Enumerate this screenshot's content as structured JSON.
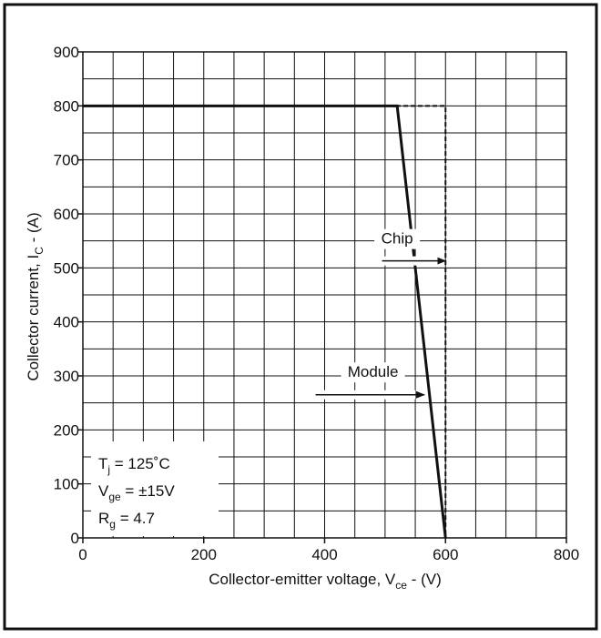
{
  "chart_data": {
    "type": "line",
    "xlabel_main": "Collector-emitter voltage, V",
    "xlabel_sub": "ce",
    "xlabel_suffix": " - (V)",
    "ylabel_main": "Collector current, I",
    "ylabel_sub": "C",
    "ylabel_suffix": " - (A)",
    "xlim": [
      0,
      800
    ],
    "ylim": [
      0,
      900
    ],
    "x_ticks": [
      0,
      200,
      400,
      600,
      800
    ],
    "y_ticks": [
      0,
      100,
      200,
      300,
      400,
      500,
      600,
      700,
      800,
      900
    ],
    "x_grid_step": 50,
    "y_grid_step": 50,
    "grid": true,
    "series": [
      {
        "name": "Chip",
        "style": "dashed",
        "points": [
          [
            0,
            800
          ],
          [
            600,
            800
          ],
          [
            600,
            0
          ]
        ]
      },
      {
        "name": "Module",
        "style": "solid",
        "points": [
          [
            0,
            800
          ],
          [
            520,
            800
          ],
          [
            600,
            0
          ]
        ]
      }
    ],
    "annotations": [
      {
        "text": "Chip",
        "text_at": [
          520,
          545
        ],
        "arrow_from": [
          495,
          513
        ],
        "arrow_to": [
          600,
          513
        ]
      },
      {
        "text": "Module",
        "text_at": [
          480,
          298
        ],
        "arrow_from": [
          385,
          265
        ],
        "arrow_to": [
          565,
          265
        ]
      }
    ],
    "conditions": {
      "tj": {
        "main": "T",
        "sub": "j",
        "rest": " = 125˚C"
      },
      "vge": {
        "main": "V",
        "sub": "ge",
        "rest": " = ±15V"
      },
      "rg": {
        "main": "R",
        "sub": "g",
        "rest": " = 4.7"
      }
    }
  }
}
